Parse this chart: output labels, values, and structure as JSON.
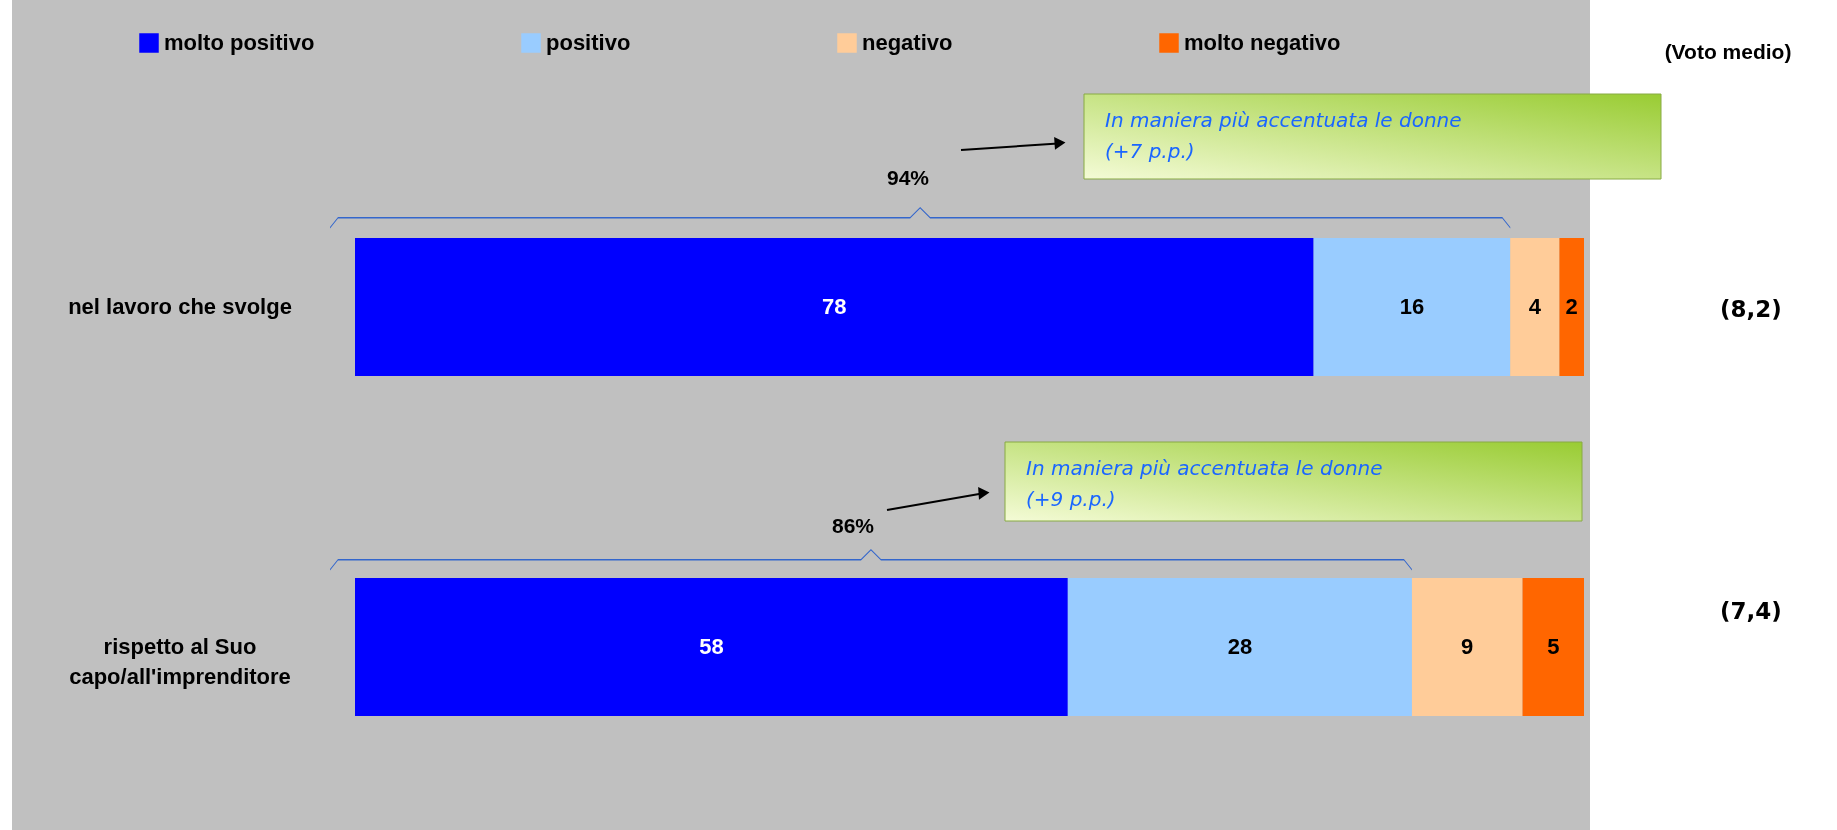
{
  "chart_data": {
    "type": "bar",
    "orientation": "horizontal",
    "stacked": true,
    "data_labels": true,
    "legend": "top",
    "tick_labels": "y",
    "categories": [
      "nel lavoro che svolge",
      "rispetto al Suo capo/all'imprenditore"
    ],
    "series": [
      {
        "name": "molto positivo",
        "color": "#0000ff",
        "values": [
          78,
          58
        ]
      },
      {
        "name": "positivo",
        "color": "#99ccff",
        "values": [
          16,
          28
        ]
      },
      {
        "name": "negativo",
        "color": "#ffcc99",
        "values": [
          4,
          9
        ]
      },
      {
        "name": "molto negativo",
        "color": "#ff6600",
        "values": [
          2,
          5
        ]
      }
    ],
    "annotations": [
      "(Voto medio)",
      "(8,2)",
      "(7,4)",
      "94%",
      "86%",
      "In maniera più accentuata le donne (+7 p.p.)",
      "In maniera più accentuata le donne (+9 p.p.)"
    ]
  }
}
